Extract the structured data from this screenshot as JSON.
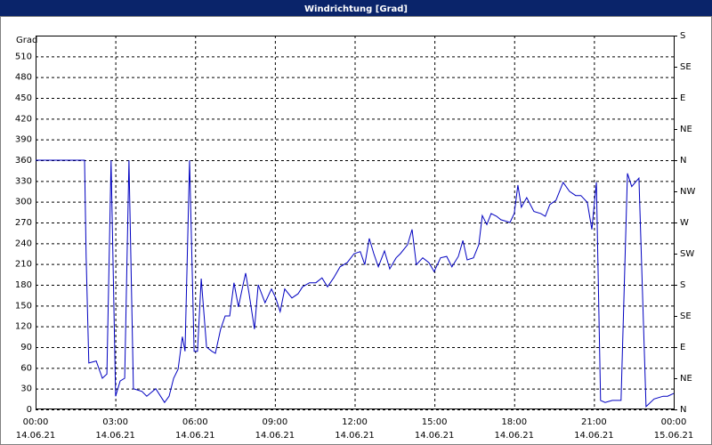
{
  "chart_data": {
    "type": "line",
    "title": "Windrichtung [Grad]",
    "y_label": "Grad",
    "xlim": [
      0,
      24
    ],
    "xticks": [
      {
        "value": 0,
        "label": "00:00"
      },
      {
        "value": 3,
        "label": "03:00"
      },
      {
        "value": 6,
        "label": "06:00"
      },
      {
        "value": 9,
        "label": "09:00"
      },
      {
        "value": 12,
        "label": "12:00"
      },
      {
        "value": 15,
        "label": "15:00"
      },
      {
        "value": 18,
        "label": "18:00"
      },
      {
        "value": 21,
        "label": "21:00"
      },
      {
        "value": 24,
        "label": "00:00"
      }
    ],
    "xtick_dates": [
      "14.06.21",
      "14.06.21",
      "14.06.21",
      "14.06.21",
      "14.06.21",
      "14.06.21",
      "14.06.21",
      "14.06.21",
      "15.06.21"
    ],
    "ylim": [
      0,
      540
    ],
    "yticks": [
      0,
      30,
      60,
      90,
      120,
      150,
      180,
      210,
      240,
      270,
      300,
      330,
      360,
      390,
      420,
      450,
      480,
      510
    ],
    "y2lim": [
      0,
      540
    ],
    "y2ticks": [
      {
        "value": 0,
        "label": "N"
      },
      {
        "value": 45,
        "label": "NE"
      },
      {
        "value": 90,
        "label": "E"
      },
      {
        "value": 135,
        "label": "SE"
      },
      {
        "value": 180,
        "label": "S"
      },
      {
        "value": 225,
        "label": "SW"
      },
      {
        "value": 270,
        "label": "W"
      },
      {
        "value": 315,
        "label": "NW"
      },
      {
        "value": 360,
        "label": "N"
      },
      {
        "value": 405,
        "label": "NE"
      },
      {
        "value": 450,
        "label": "E"
      },
      {
        "value": 495,
        "label": "SE"
      },
      {
        "value": 540,
        "label": "S"
      }
    ],
    "grid": true,
    "x": [
      0,
      1.84,
      1.9,
      2.0,
      2.28,
      2.51,
      2.68,
      2.84,
      3.01,
      3.18,
      3.35,
      3.51,
      3.68,
      4.0,
      4.18,
      4.52,
      4.85,
      5.02,
      5.19,
      5.36,
      5.52,
      5.62,
      5.79,
      5.96,
      6.09,
      6.23,
      6.43,
      6.63,
      6.76,
      6.96,
      7.13,
      7.3,
      7.46,
      7.63,
      7.77,
      7.9,
      8.03,
      8.23,
      8.37,
      8.63,
      8.87,
      9.03,
      9.2,
      9.37,
      9.64,
      9.87,
      10.04,
      10.3,
      10.54,
      10.77,
      10.98,
      11.21,
      11.45,
      11.72,
      11.98,
      12.21,
      12.38,
      12.55,
      12.72,
      12.89,
      13.12,
      13.32,
      13.56,
      13.72,
      13.99,
      14.16,
      14.32,
      14.56,
      14.79,
      14.99,
      15.23,
      15.46,
      15.66,
      15.9,
      16.07,
      16.23,
      16.47,
      16.67,
      16.8,
      16.97,
      17.13,
      17.34,
      17.5,
      17.67,
      17.84,
      18.0,
      18.14,
      18.27,
      18.47,
      18.74,
      19.0,
      19.17,
      19.34,
      19.57,
      19.84,
      20.08,
      20.31,
      20.51,
      20.75,
      20.92,
      21.09,
      21.25,
      21.42,
      21.69,
      22.02,
      22.26,
      22.42,
      22.69,
      22.96,
      23.26,
      23.6,
      23.77,
      24.0
    ],
    "series": [
      {
        "name": "Windrichtung",
        "color": "#0000c0",
        "values": [
          360,
          360,
          220,
          67,
          70,
          45,
          51,
          360,
          19,
          41,
          45,
          360,
          30,
          26,
          19,
          30,
          10,
          19,
          45,
          58,
          105,
          84,
          360,
          84,
          84,
          189,
          90,
          84,
          81,
          116,
          135,
          135,
          183,
          148,
          174,
          197,
          167,
          116,
          180,
          154,
          174,
          161,
          141,
          174,
          161,
          167,
          177,
          183,
          183,
          190,
          177,
          190,
          206,
          212,
          225,
          228,
          209,
          247,
          225,
          206,
          229,
          203,
          219,
          225,
          238,
          260,
          209,
          219,
          212,
          199,
          219,
          221,
          206,
          221,
          244,
          216,
          219,
          238,
          280,
          267,
          283,
          279,
          274,
          272,
          270,
          283,
          324,
          292,
          306,
          286,
          283,
          279,
          296,
          302,
          328,
          315,
          309,
          309,
          299,
          260,
          328,
          13,
          10,
          13,
          13,
          341,
          322,
          334,
          4,
          15,
          19,
          19,
          23
        ]
      }
    ]
  }
}
